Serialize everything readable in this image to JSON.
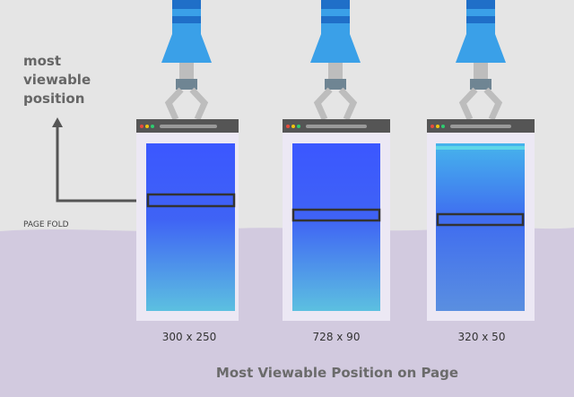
{
  "annotation": {
    "lines": [
      "most",
      "viewable",
      "position"
    ]
  },
  "fold_label": "PAGE FOLD",
  "devices": [
    {
      "label": "300 x 250"
    },
    {
      "label": "728 x 90"
    },
    {
      "label": "320 x 50"
    }
  ],
  "caption": "Most Viewable Position on Page"
}
